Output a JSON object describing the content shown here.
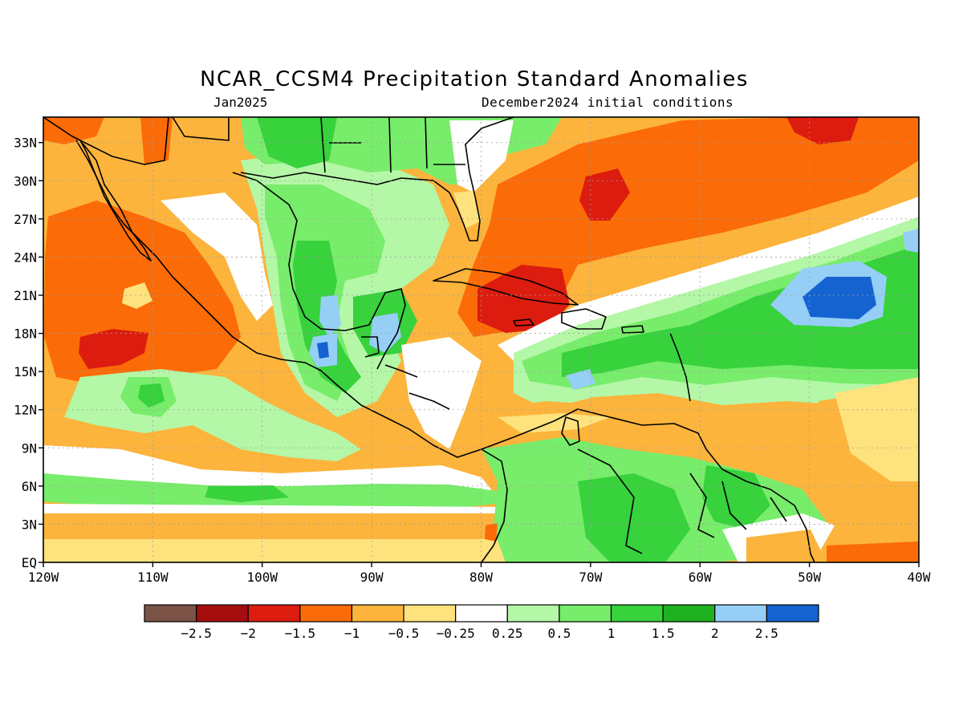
{
  "title": "NCAR_CCSM4 Precipitation Standard Anomalies",
  "subtitle_left": "Jan2025",
  "subtitle_right": "December2024 initial conditions",
  "map": {
    "lon_range": [
      -120,
      -40
    ],
    "lat_range": [
      0,
      35
    ],
    "lat_ticks": [
      "33N",
      "30N",
      "27N",
      "24N",
      "21N",
      "18N",
      "15N",
      "12N",
      "9N",
      "6N",
      "3N",
      "EQ"
    ],
    "lat_values": [
      33,
      30,
      27,
      24,
      21,
      18,
      15,
      12,
      9,
      6,
      3,
      0
    ],
    "lon_ticks": [
      "120W",
      "110W",
      "100W",
      "90W",
      "80W",
      "70W",
      "60W",
      "50W",
      "40W"
    ],
    "lon_values": [
      -120,
      -110,
      -100,
      -90,
      -80,
      -70,
      -60,
      -50,
      -40
    ]
  },
  "colorbar": {
    "colors": [
      "#7b5347",
      "#a50e0e",
      "#dc1c0f",
      "#fb6b07",
      "#fcb43c",
      "#fee27d",
      "#ffffff",
      "#b4f7a7",
      "#78ec6b",
      "#37d23c",
      "#1fb11f",
      "#96cff6",
      "#1463d1"
    ],
    "labels": [
      "−2.5",
      "−2",
      "−1.5",
      "−1",
      "−0.5",
      "−0.25",
      "0.25",
      "0.5",
      "1",
      "1.5",
      "2",
      "2.5"
    ]
  },
  "colors": {
    "dark_red": "#dc1c0f",
    "orange": "#fb6b07",
    "light_orange": "#fcb43c",
    "yellow": "#fee27d",
    "light_green": "#b4f7a7",
    "green": "#78ec6b",
    "mid_green": "#37d23c",
    "dark_green": "#1fb11f",
    "light_blue": "#96cff6",
    "blue": "#1463d1"
  }
}
